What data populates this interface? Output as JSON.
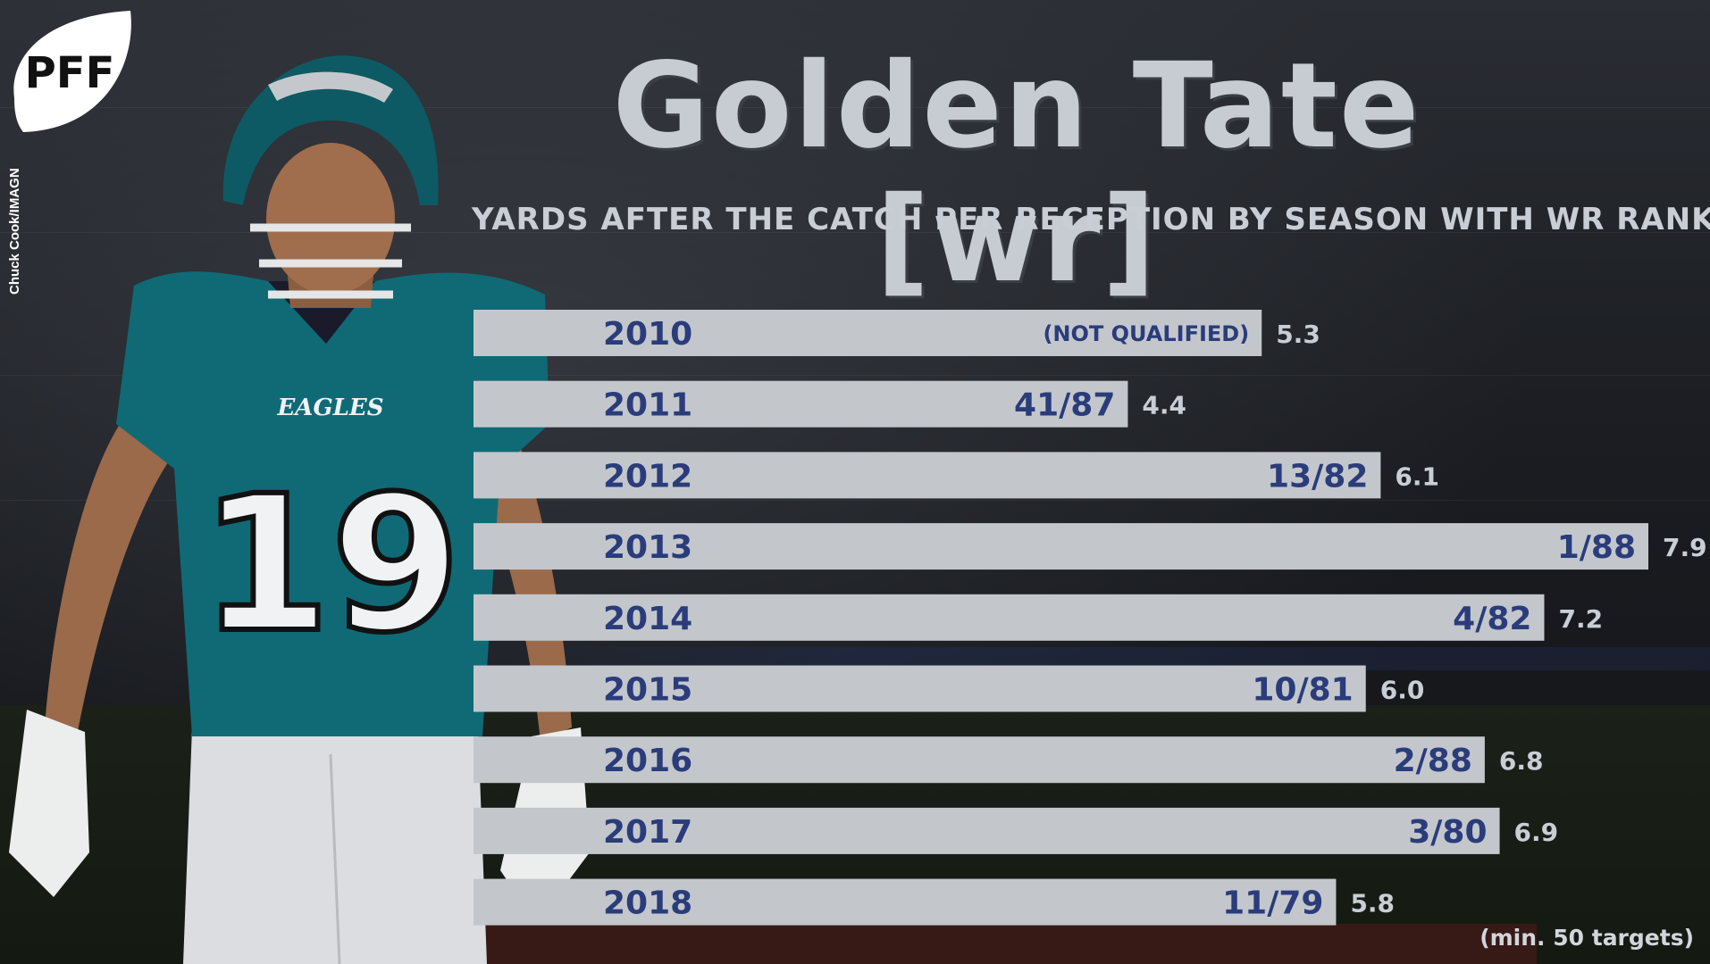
{
  "brand": {
    "logo_text": "PFF",
    "photo_credit": "Chuck Cook/IMAGN"
  },
  "colors": {
    "bar": "#c3c7cc",
    "bar_label": "#2a3c7a",
    "value_label": "#c9ced6",
    "title": "#c7ccd2",
    "jersey": "#0f6a76"
  },
  "player_art": {
    "jersey_number": "19",
    "team_wordmark": "EAGLES"
  },
  "chart_data": {
    "type": "bar",
    "orientation": "horizontal",
    "title": "Golden Tate [wr]",
    "subtitle": "YARDS AFTER THE CATCH PER RECEPTION BY SEASON WITH WR RANK",
    "note": "(min. 50 targets)",
    "categories": [
      "2010",
      "2011",
      "2012",
      "2013",
      "2014",
      "2015",
      "2016",
      "2017",
      "2018"
    ],
    "values": [
      5.3,
      4.4,
      6.1,
      7.9,
      7.2,
      6.0,
      6.8,
      6.9,
      5.8
    ],
    "value_labels": [
      "5.3",
      "4.4",
      "6.1",
      "7.9",
      "7.2",
      "6.0",
      "6.8",
      "6.9",
      "5.8"
    ],
    "rank_labels": [
      "(NOT QUALIFIED)",
      "41/87",
      "13/82",
      "1/88",
      "4/82",
      "10/81",
      "2/88",
      "3/80",
      "11/79"
    ],
    "xlim": [
      0,
      7.9
    ],
    "grid": false,
    "legend": "none"
  }
}
